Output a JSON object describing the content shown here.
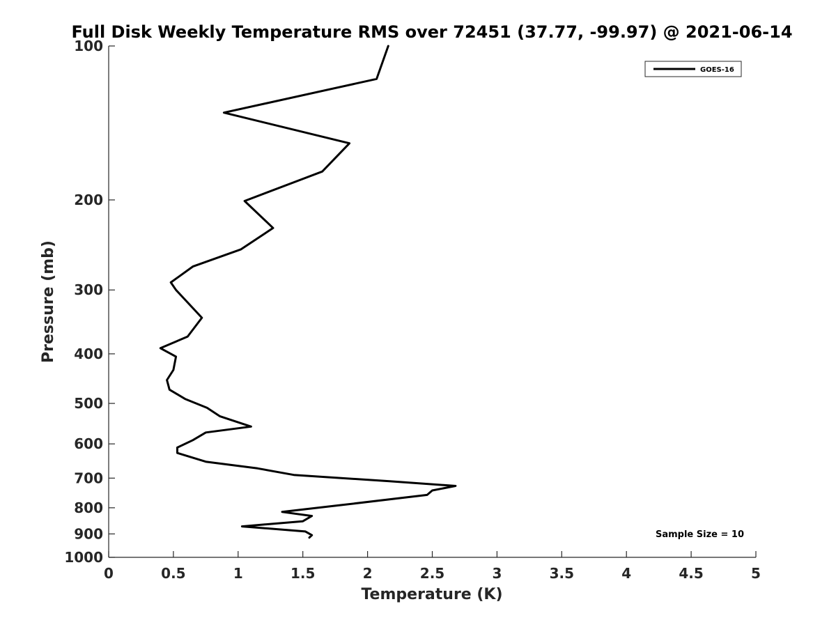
{
  "chart_data": {
    "type": "line",
    "title": "Full Disk Weekly Temperature RMS over 72451 (37.77, -99.97) @ 2021-06-14",
    "xlabel": "Temperature (K)",
    "ylabel": "Pressure (mb)",
    "xlim": [
      0,
      5
    ],
    "ylim": [
      1000,
      100
    ],
    "yscale": "log",
    "y_reversed": true,
    "grid": false,
    "legend_placement": "top-right",
    "x_ticks": [
      0,
      0.5,
      1,
      1.5,
      2,
      2.5,
      3,
      3.5,
      4,
      4.5,
      5
    ],
    "x_tick_labels": [
      "0",
      "0.5",
      "1",
      "1.5",
      "2",
      "2.5",
      "3",
      "3.5",
      "4",
      "4.5",
      "5"
    ],
    "y_ticks": [
      100,
      200,
      300,
      400,
      500,
      600,
      700,
      800,
      900,
      1000
    ],
    "y_tick_labels": [
      "100",
      "200",
      "300",
      "400",
      "500",
      "600",
      "700",
      "800",
      "900",
      "1000"
    ],
    "series": [
      {
        "name": "GOES-16",
        "color": "#000000",
        "x": [
          2.16,
          2.07,
          0.89,
          1.86,
          1.65,
          1.05,
          1.27,
          1.02,
          0.65,
          0.48,
          0.52,
          0.72,
          0.61,
          0.4,
          0.52,
          0.5,
          0.45,
          0.47,
          0.59,
          0.76,
          0.86,
          1.1,
          0.75,
          0.65,
          0.53,
          0.53,
          0.75,
          1.15,
          1.43,
          2.17,
          2.68,
          2.5,
          2.46,
          1.8,
          1.34,
          1.57,
          1.5,
          1.03,
          1.52,
          1.57,
          1.55
        ],
        "y": [
          100,
          116,
          135,
          155,
          176,
          201,
          227,
          250,
          270,
          290,
          300,
          340,
          370,
          390,
          405,
          430,
          450,
          470,
          490,
          510,
          530,
          555,
          570,
          590,
          610,
          625,
          650,
          670,
          690,
          710,
          725,
          740,
          755,
          790,
          815,
          830,
          850,
          870,
          890,
          905,
          915
        ]
      }
    ],
    "annotations": [
      {
        "text": "Sample Size = 10",
        "position": "bottom-right"
      }
    ]
  }
}
